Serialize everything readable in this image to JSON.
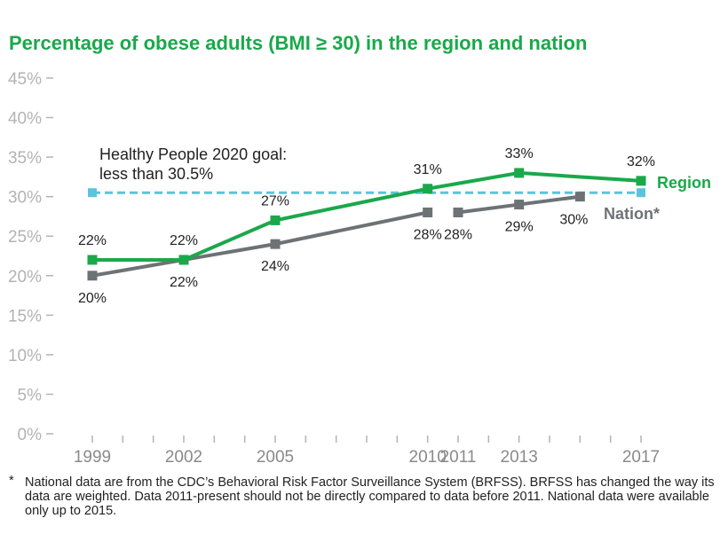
{
  "chart_data": {
    "type": "line",
    "title": "Percentage of obese adults (BMI ≥ 30) in the region and nation",
    "ylim": [
      0,
      45
    ],
    "y_ticks": [
      "0%",
      "5%",
      "10%",
      "15%",
      "20%",
      "25%",
      "30%",
      "35%",
      "40%",
      "45%"
    ],
    "x_range": [
      1999,
      2017
    ],
    "x_tick_labels": [
      "1999",
      "2002",
      "2005",
      "2010",
      "2011",
      "2013",
      "2017"
    ],
    "grid": false,
    "series": [
      {
        "name": "Region",
        "color": "#1aa84b",
        "x": [
          1999,
          2002,
          2005,
          2010,
          2013,
          2017
        ],
        "values": [
          22,
          22,
          27,
          31,
          33,
          32
        ],
        "labels": [
          "22%",
          "22%",
          "27%",
          "31%",
          "33%",
          "32%"
        ]
      },
      {
        "name": "Nation*",
        "color": "#6d7275",
        "segments": [
          {
            "x": [
              1999,
              2002,
              2005,
              2010
            ],
            "values": [
              20,
              22,
              24,
              28
            ]
          },
          {
            "x": [
              2011,
              2013,
              2015
            ],
            "values": [
              28,
              29,
              30
            ]
          }
        ],
        "point_labels": [
          {
            "x": 1999,
            "label": "20%"
          },
          {
            "x": 2002,
            "label": "22%"
          },
          {
            "x": 2005,
            "label": "24%"
          },
          {
            "x": 2010,
            "label": "28%"
          },
          {
            "x": 2011,
            "label": "28%"
          },
          {
            "x": 2013,
            "label": "29%"
          },
          {
            "x": 2015,
            "label": "30%"
          }
        ]
      }
    ],
    "goal_line": {
      "value": 30.5,
      "x": [
        1999,
        2017
      ],
      "color": "#5bc4dc",
      "label_line1": "Healthy People 2020 goal:",
      "label_line2": "less than 30.5%"
    }
  },
  "footnote": {
    "marker": "*",
    "text": "National data are from the CDC’s Behavioral Risk Factor Surveillance System (BRFSS). BRFSS has changed the way its data are weighted. Data 2011-present should not be directly compared to data before 2011. National data were available only up to 2015."
  }
}
